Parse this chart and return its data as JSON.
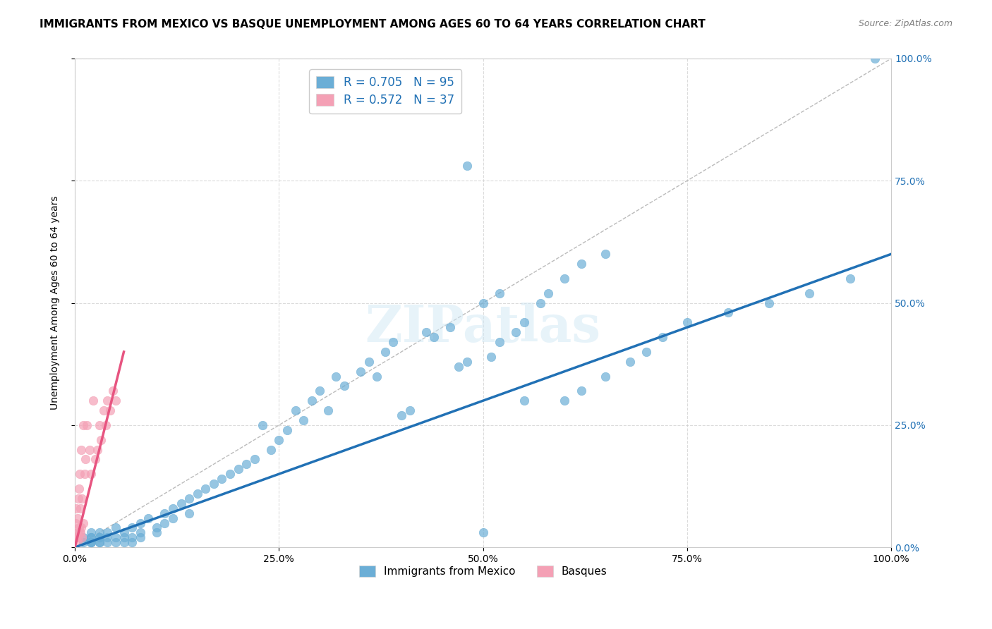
{
  "title": "IMMIGRANTS FROM MEXICO VS BASQUE UNEMPLOYMENT AMONG AGES 60 TO 64 YEARS CORRELATION CHART",
  "source": "Source: ZipAtlas.com",
  "ylabel": "Unemployment Among Ages 60 to 64 years",
  "xlim": [
    0,
    1.0
  ],
  "ylim": [
    0,
    1.0
  ],
  "xtick_labels": [
    "0.0%",
    "25.0%",
    "50.0%",
    "75.0%",
    "100.0%"
  ],
  "xtick_vals": [
    0,
    0.25,
    0.5,
    0.75,
    1.0
  ],
  "ytick_labels_right": [
    "100.0%",
    "75.0%",
    "50.0%",
    "25.0%",
    "0.0%"
  ],
  "ytick_vals": [
    1.0,
    0.75,
    0.5,
    0.25,
    0.0
  ],
  "blue_color": "#6baed6",
  "pink_color": "#f4a0b5",
  "blue_line_color": "#2171b5",
  "pink_line_color": "#e75480",
  "ref_line_color": "#bbbbbb",
  "legend_R1": "R = 0.705",
  "legend_N1": "N = 95",
  "legend_R2": "R = 0.572",
  "legend_N2": "N = 37",
  "watermark": "ZIPatlas",
  "blue_scatter_x": [
    0.01,
    0.01,
    0.02,
    0.02,
    0.02,
    0.02,
    0.02,
    0.02,
    0.03,
    0.03,
    0.03,
    0.03,
    0.03,
    0.04,
    0.04,
    0.04,
    0.05,
    0.05,
    0.05,
    0.06,
    0.06,
    0.06,
    0.07,
    0.07,
    0.07,
    0.08,
    0.08,
    0.08,
    0.09,
    0.1,
    0.1,
    0.11,
    0.11,
    0.12,
    0.12,
    0.13,
    0.14,
    0.14,
    0.15,
    0.16,
    0.17,
    0.18,
    0.19,
    0.2,
    0.21,
    0.22,
    0.23,
    0.24,
    0.25,
    0.26,
    0.27,
    0.28,
    0.29,
    0.3,
    0.31,
    0.32,
    0.33,
    0.35,
    0.36,
    0.37,
    0.38,
    0.39,
    0.4,
    0.41,
    0.43,
    0.44,
    0.46,
    0.47,
    0.48,
    0.5,
    0.51,
    0.52,
    0.54,
    0.55,
    0.57,
    0.58,
    0.6,
    0.62,
    0.65,
    0.48,
    0.5,
    0.52,
    0.55,
    0.6,
    0.62,
    0.65,
    0.68,
    0.7,
    0.72,
    0.75,
    0.8,
    0.85,
    0.9,
    0.95,
    0.98
  ],
  "blue_scatter_y": [
    0.01,
    0.02,
    0.01,
    0.02,
    0.03,
    0.01,
    0.02,
    0.01,
    0.02,
    0.01,
    0.03,
    0.02,
    0.01,
    0.02,
    0.01,
    0.03,
    0.02,
    0.01,
    0.04,
    0.02,
    0.03,
    0.01,
    0.02,
    0.04,
    0.01,
    0.03,
    0.05,
    0.02,
    0.06,
    0.04,
    0.03,
    0.07,
    0.05,
    0.08,
    0.06,
    0.09,
    0.07,
    0.1,
    0.11,
    0.12,
    0.13,
    0.14,
    0.15,
    0.16,
    0.17,
    0.18,
    0.25,
    0.2,
    0.22,
    0.24,
    0.28,
    0.26,
    0.3,
    0.32,
    0.28,
    0.35,
    0.33,
    0.36,
    0.38,
    0.35,
    0.4,
    0.42,
    0.27,
    0.28,
    0.44,
    0.43,
    0.45,
    0.37,
    0.38,
    0.03,
    0.39,
    0.42,
    0.44,
    0.46,
    0.5,
    0.52,
    0.55,
    0.58,
    0.6,
    0.78,
    0.5,
    0.52,
    0.3,
    0.3,
    0.32,
    0.35,
    0.38,
    0.4,
    0.43,
    0.46,
    0.48,
    0.5,
    0.52,
    0.55,
    1.0
  ],
  "pink_scatter_x": [
    0.001,
    0.001,
    0.002,
    0.002,
    0.003,
    0.003,
    0.003,
    0.004,
    0.004,
    0.005,
    0.005,
    0.006,
    0.006,
    0.007,
    0.007,
    0.008,
    0.008,
    0.009,
    0.009,
    0.01,
    0.01,
    0.012,
    0.013,
    0.015,
    0.018,
    0.02,
    0.022,
    0.025,
    0.028,
    0.03,
    0.032,
    0.035,
    0.038,
    0.04,
    0.043,
    0.047,
    0.05
  ],
  "pink_scatter_y": [
    0.02,
    0.05,
    0.08,
    0.02,
    0.03,
    0.06,
    0.01,
    0.1,
    0.02,
    0.12,
    0.04,
    0.15,
    0.03,
    0.08,
    0.03,
    0.2,
    0.04,
    0.1,
    0.02,
    0.25,
    0.05,
    0.15,
    0.18,
    0.25,
    0.2,
    0.15,
    0.3,
    0.18,
    0.2,
    0.25,
    0.22,
    0.28,
    0.25,
    0.3,
    0.28,
    0.32,
    0.3
  ],
  "blue_line_x0": 0.0,
  "blue_line_x1": 1.0,
  "blue_line_y0": 0.0,
  "blue_line_y1": 0.6,
  "pink_line_x0": 0.0,
  "pink_line_x1": 0.06,
  "pink_line_y0": 0.0,
  "pink_line_y1": 0.4,
  "background_color": "#ffffff",
  "grid_color": "#cccccc",
  "title_fontsize": 11,
  "axis_fontsize": 10,
  "tick_fontsize": 10,
  "legend_fontsize": 12
}
